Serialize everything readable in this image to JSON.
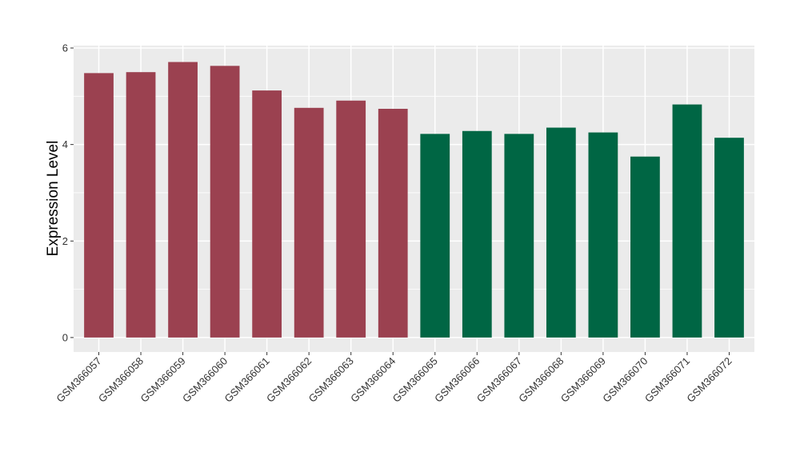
{
  "chart_data": {
    "type": "bar",
    "title": "",
    "xlabel": "",
    "ylabel": "Expression Level",
    "ylim": [
      -0.3,
      6.05
    ],
    "yticks": [
      0,
      2,
      4,
      6
    ],
    "grid": true,
    "legend": "none",
    "categories": [
      "GSM366057",
      "GSM366058",
      "GSM366059",
      "GSM366060",
      "GSM366061",
      "GSM366062",
      "GSM366063",
      "GSM366064",
      "GSM366065",
      "GSM366066",
      "GSM366067",
      "GSM366068",
      "GSM366069",
      "GSM366070",
      "GSM366071",
      "GSM366072"
    ],
    "values": [
      5.48,
      5.5,
      5.71,
      5.63,
      5.12,
      4.76,
      4.91,
      4.74,
      4.22,
      4.28,
      4.22,
      4.35,
      4.25,
      3.75,
      4.83,
      4.14
    ],
    "group_colors": [
      "#9b4150",
      "#9b4150",
      "#9b4150",
      "#9b4150",
      "#9b4150",
      "#9b4150",
      "#9b4150",
      "#9b4150",
      "#006644",
      "#006644",
      "#006644",
      "#006644",
      "#006644",
      "#006644",
      "#006644",
      "#006644"
    ],
    "panel_color": "#ebebeb",
    "grid_color": "#ffffff"
  }
}
